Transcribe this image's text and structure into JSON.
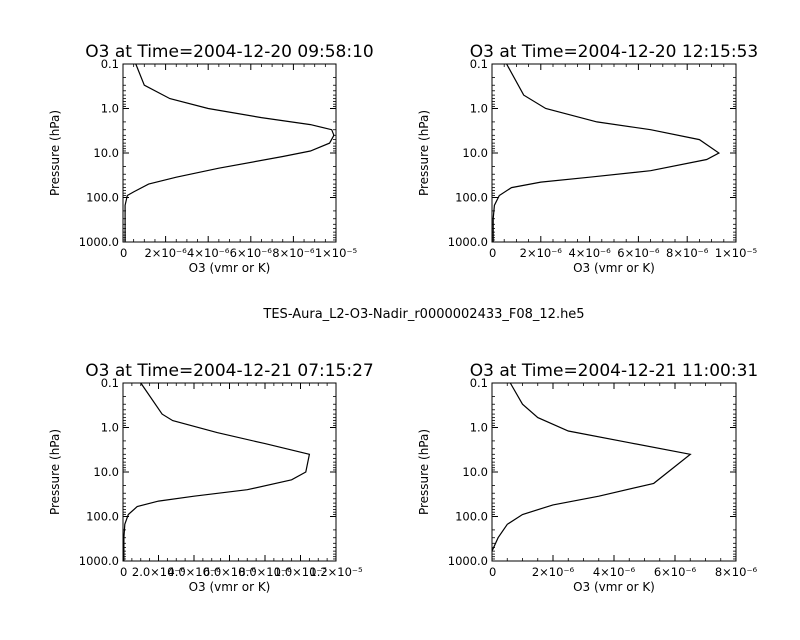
{
  "figure": {
    "suptitle": "TES-Aura_L2-O3-Nadir_r0000002433_F08_12.he5"
  },
  "chart_data": [
    {
      "type": "line",
      "title": "O3 at Time=2004-12-20 09:58:10",
      "xlabel": "O3 (vmr or K)",
      "ylabel": "Pressure (hPa)",
      "yscale": "log",
      "yinvert": true,
      "xlim": [
        0,
        1e-05
      ],
      "ylim": [
        1000,
        0.1
      ],
      "xticks": [
        0,
        2e-06,
        4e-06,
        6e-06,
        8e-06,
        1e-05
      ],
      "xtick_labels": [
        "0",
        "2×10⁻⁶",
        "4×10⁻⁶",
        "6×10⁻⁶",
        "8×10⁻⁶",
        "1×10⁻⁵"
      ],
      "yticks": [
        0.1,
        1,
        10,
        100,
        1000
      ],
      "ytick_labels": [
        "0.1",
        "1.0",
        "10.0",
        "100.0",
        "1000.0"
      ],
      "series": [
        {
          "x": [
            1e-07,
            1e-07,
            1e-07,
            2e-07,
            5e-07,
            1.2e-06,
            2.5e-06,
            4.5e-06,
            7.5e-06,
            8.8e-06,
            9.7e-06,
            9.9e-06,
            9.8e-06,
            8.8e-06,
            6.5e-06,
            4e-06,
            2.2e-06,
            1e-06,
            6e-07
          ],
          "y": [
            1000,
            300,
            150,
            90,
            75,
            50,
            35,
            22,
            12,
            9,
            6,
            4,
            3,
            2.3,
            1.6,
            1.0,
            0.6,
            0.3,
            0.1
          ]
        }
      ]
    },
    {
      "type": "line",
      "title": "O3 at Time=2004-12-20 12:15:53",
      "xlabel": "O3 (vmr or K)",
      "ylabel": "Pressure (hPa)",
      "yscale": "log",
      "yinvert": true,
      "xlim": [
        0,
        1e-05
      ],
      "ylim": [
        1000,
        0.1
      ],
      "xticks": [
        0,
        2e-06,
        4e-06,
        6e-06,
        8e-06,
        1e-05
      ],
      "xtick_labels": [
        "0",
        "2×10⁻⁶",
        "4×10⁻⁶",
        "6×10⁻⁶",
        "8×10⁻⁶",
        "1×10⁻⁵"
      ],
      "yticks": [
        0.1,
        1,
        10,
        100,
        1000
      ],
      "ytick_labels": [
        "0.1",
        "1.0",
        "10.0",
        "100.0",
        "1000.0"
      ],
      "series": [
        {
          "x": [
            5e-08,
            5e-08,
            1e-07,
            3e-07,
            8e-07,
            2e-06,
            4e-06,
            6.5e-06,
            8.8e-06,
            9.3e-06,
            8.5e-06,
            6.5e-06,
            4.3e-06,
            2.2e-06,
            1.3e-06,
            6e-07
          ],
          "y": [
            1000,
            300,
            150,
            90,
            60,
            45,
            35,
            25,
            14,
            10,
            5,
            3,
            2,
            1.0,
            0.5,
            0.1
          ]
        }
      ]
    },
    {
      "type": "line",
      "title": "O3 at Time=2004-12-21 07:15:27",
      "xlabel": "O3 (vmr or K)",
      "ylabel": "Pressure (hPa)",
      "yscale": "log",
      "yinvert": true,
      "xlim": [
        0,
        1.2e-05
      ],
      "ylim": [
        1000,
        0.1
      ],
      "xticks": [
        0,
        2e-06,
        4e-06,
        6e-06,
        8e-06,
        1e-05,
        1.2e-05
      ],
      "xtick_labels": [
        "0",
        "2.0×10⁻⁶",
        "4.0×10⁻⁶",
        "6.0×10⁻⁶",
        "8.0×10⁻⁶",
        "1.0×10⁻⁵",
        "1.2×10⁻⁵"
      ],
      "yticks": [
        0.1,
        1,
        10,
        100,
        1000
      ],
      "ytick_labels": [
        "0.1",
        "1.0",
        "10.0",
        "100.0",
        "1000.0"
      ],
      "series": [
        {
          "x": [
            5e-08,
            5e-08,
            1e-07,
            3e-07,
            8e-07,
            2e-06,
            4e-06,
            7e-06,
            9.5e-06,
            1.03e-05,
            1.05e-05,
            8e-06,
            5.3e-06,
            2.8e-06,
            2.2e-06,
            1e-06
          ],
          "y": [
            1000,
            300,
            150,
            90,
            60,
            45,
            35,
            25,
            15,
            10,
            4,
            2.3,
            1.3,
            0.7,
            0.5,
            0.1
          ]
        }
      ]
    },
    {
      "type": "line",
      "title": "O3 at Time=2004-12-21 11:00:31",
      "xlabel": "O3 (vmr or K)",
      "ylabel": "Pressure (hPa)",
      "yscale": "log",
      "yinvert": true,
      "xlim": [
        0,
        8e-06
      ],
      "ylim": [
        1000,
        0.1
      ],
      "xticks": [
        0,
        2e-06,
        4e-06,
        6e-06,
        8e-06
      ],
      "xtick_labels": [
        "0",
        "2×10⁻⁶",
        "4×10⁻⁶",
        "6×10⁻⁶",
        "8×10⁻⁶"
      ],
      "yticks": [
        0.1,
        1,
        10,
        100,
        1000
      ],
      "ytick_labels": [
        "0.1",
        "1.0",
        "10.0",
        "100.0",
        "1000.0"
      ],
      "series": [
        {
          "x": [
            0,
            2e-07,
            5e-07,
            1e-06,
            2e-06,
            3.5e-06,
            5.3e-06,
            6.5e-06,
            4.5e-06,
            2.5e-06,
            1.5e-06,
            1e-06,
            6e-07
          ],
          "y": [
            600,
            300,
            150,
            90,
            55,
            35,
            18,
            4,
            2.2,
            1.2,
            0.6,
            0.3,
            0.1
          ]
        }
      ]
    }
  ]
}
